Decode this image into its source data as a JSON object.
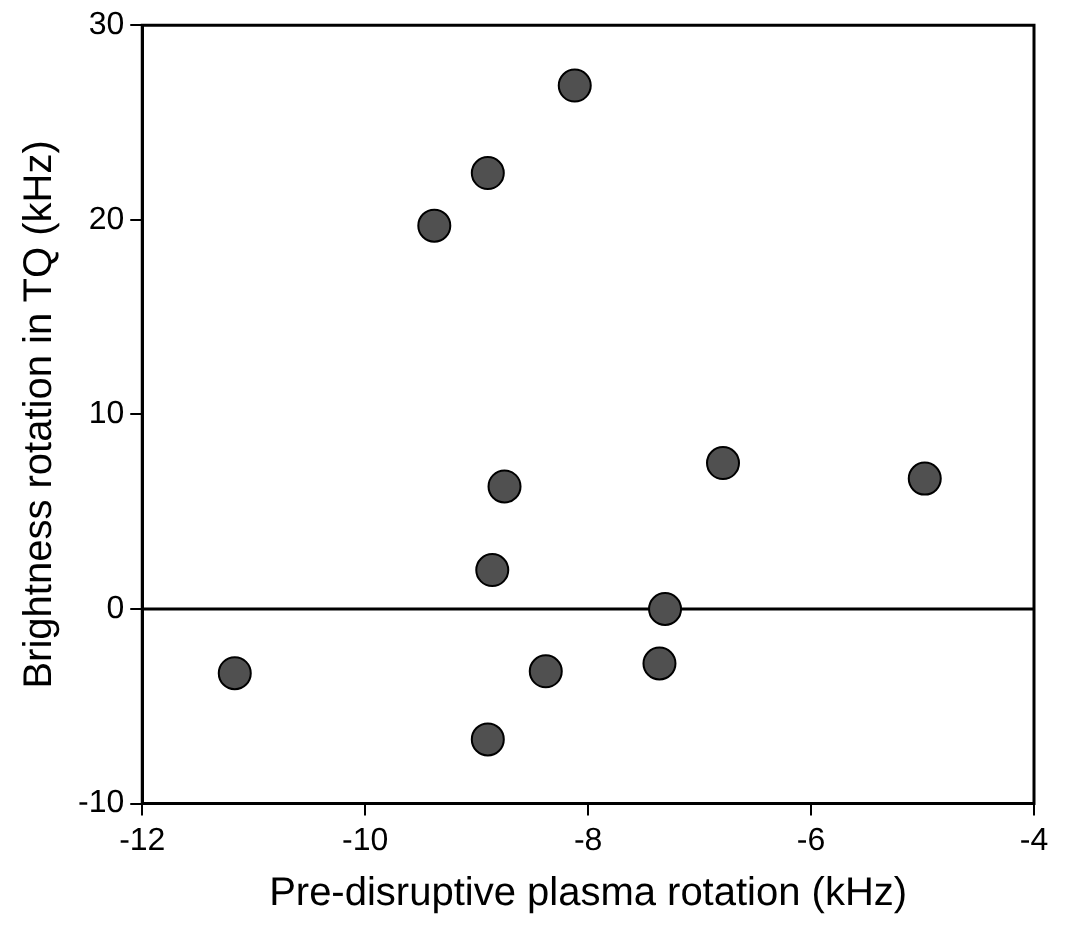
{
  "chart_data": {
    "type": "scatter",
    "xlabel": "Pre-disruptive plasma rotation (kHz)",
    "ylabel": "Brightness rotation in TQ (kHz)",
    "x": [
      -11.17,
      -8.12,
      -8.9,
      -9.38,
      -8.75,
      -6.79,
      -4.98,
      -8.86,
      -7.31,
      -8.38,
      -7.36,
      -8.9
    ],
    "series": [
      {
        "color": "#505050",
        "values": [
          -3.3,
          26.9,
          22.4,
          19.7,
          6.3,
          7.5,
          6.7,
          2.0,
          0,
          -3.2,
          -2.8,
          -6.7
        ]
      }
    ],
    "xlim": [
      -12,
      -4
    ],
    "xticks": [
      -12,
      -10,
      -8,
      -6,
      -4
    ],
    "ylim": [
      -10,
      30
    ],
    "yticks": [
      -10,
      0,
      10,
      20,
      30
    ],
    "ref_lines": [
      {
        "axis": "y",
        "value": 0,
        "color": "#000000"
      }
    ],
    "grid": false,
    "legend": false,
    "marker": "circle"
  }
}
